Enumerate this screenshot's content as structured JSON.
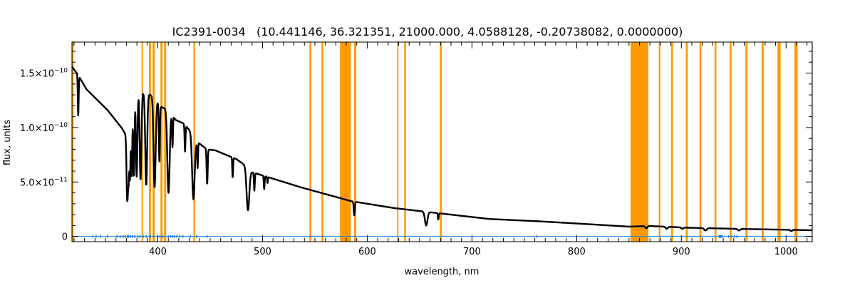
{
  "chart_data": {
    "type": "line",
    "title": "IC2391-0034   (10.441146, 36.321351, 21000.000, 4.0588128, -0.20738082, 0.0000000)",
    "xlabel": "wavelength, nm",
    "ylabel": "flux, units",
    "xlim": [
      318,
      1025
    ],
    "ylim_e11": [
      -0.48,
      17.85
    ],
    "x_ticks": [
      {
        "value": 400,
        "label": "400"
      },
      {
        "value": 500,
        "label": "500"
      },
      {
        "value": 600,
        "label": "600"
      },
      {
        "value": 700,
        "label": "700"
      },
      {
        "value": 800,
        "label": "800"
      },
      {
        "value": 900,
        "label": "900"
      },
      {
        "value": 1000,
        "label": "1000"
      }
    ],
    "y_ticks": [
      {
        "value_e11": 0,
        "mantissa": "0",
        "exponent": ""
      },
      {
        "value_e11": 5,
        "mantissa": "5.0×10",
        "exponent": "−11"
      },
      {
        "value_e11": 10,
        "mantissa": "1.0×10",
        "exponent": "−10"
      },
      {
        "value_e11": 15,
        "mantissa": "1.5×10",
        "exponent": "−10"
      }
    ],
    "colors": {
      "spectrum": "#000000",
      "masks": "#ff9900",
      "error": "#1e7fe0"
    },
    "series": [
      {
        "name": "flux",
        "unit_scale": "1e-11",
        "continuum": [
          [
            318,
            15.6
          ],
          [
            324,
            14.8
          ],
          [
            332,
            13.5
          ],
          [
            352,
            11.6
          ],
          [
            366,
            9.9
          ],
          [
            369.5,
            9.3
          ],
          [
            371,
            12.0
          ],
          [
            376,
            13.1
          ],
          [
            382,
            13.3
          ],
          [
            396,
            12.9
          ],
          [
            403,
            11.9
          ],
          [
            410,
            11.6
          ],
          [
            417,
            10.7
          ],
          [
            424,
            10.4
          ],
          [
            432,
            9.6
          ],
          [
            436,
            8.8
          ],
          [
            447,
            8.0
          ],
          [
            455,
            7.9
          ],
          [
            475,
            7.1
          ],
          [
            484,
            6.5
          ],
          [
            490,
            5.9
          ],
          [
            537,
            4.5
          ],
          [
            575,
            3.5
          ],
          [
            584,
            3.25
          ],
          [
            626,
            2.6
          ],
          [
            671,
            2.1
          ],
          [
            717,
            1.6
          ],
          [
            762,
            1.4
          ],
          [
            807,
            1.15
          ],
          [
            850,
            0.9
          ],
          [
            869,
            0.96
          ],
          [
            907,
            0.8
          ],
          [
            952,
            0.7
          ],
          [
            1025,
            0.57
          ]
        ],
        "absorption_lines": [
          [
            324,
            11.1,
            0.4
          ],
          [
            370.4,
            5.8,
            0.5
          ],
          [
            371.2,
            5.9,
            0.5
          ],
          [
            372.2,
            6.0,
            0.5
          ],
          [
            373.4,
            5.7,
            0.5
          ],
          [
            375.0,
            5.6,
            0.6
          ],
          [
            377.1,
            5.5,
            0.6
          ],
          [
            379.8,
            5.5,
            0.7
          ],
          [
            383.5,
            5.2,
            0.8
          ],
          [
            388.9,
            4.7,
            0.9
          ],
          [
            396.9,
            4.5,
            1.0
          ],
          [
            401.5,
            6.8,
            0.5
          ],
          [
            410.2,
            4.0,
            1.1
          ],
          [
            414,
            8.2,
            0.4
          ],
          [
            426,
            7.8,
            0.4
          ],
          [
            434.0,
            3.4,
            1.2
          ],
          [
            438,
            6.3,
            0.4
          ],
          [
            447.1,
            4.8,
            0.5
          ],
          [
            471.5,
            5.4,
            0.4
          ],
          [
            486.1,
            2.4,
            1.3
          ],
          [
            492.2,
            4.2,
            0.4
          ],
          [
            501.6,
            4.35,
            0.4
          ],
          [
            504.8,
            4.9,
            0.3
          ],
          [
            587.6,
            1.95,
            0.5
          ],
          [
            656.3,
            1.0,
            1.2
          ],
          [
            667.8,
            1.55,
            0.4
          ],
          [
            866.5,
            0.75,
            1.0
          ],
          [
            886,
            0.7,
            1.0
          ],
          [
            901,
            0.7,
            1.0
          ],
          [
            923,
            0.55,
            1.2
          ],
          [
            955,
            0.55,
            1.2
          ],
          [
            1005,
            0.5,
            1.0
          ]
        ]
      }
    ],
    "masked_regions_nm": [
      [
        318,
        319.5
      ],
      [
        384.5,
        385.8
      ],
      [
        391.5,
        393.5
      ],
      [
        395,
        397
      ],
      [
        402.5,
        404.5
      ],
      [
        406,
        408
      ],
      [
        434,
        435.5
      ],
      [
        544.8,
        546.6
      ],
      [
        556.3,
        558
      ],
      [
        574,
        584.3
      ],
      [
        587.5,
        589.4
      ],
      [
        628.5,
        629.8
      ],
      [
        635.3,
        637
      ],
      [
        669.4,
        671.3
      ],
      [
        851.5,
        868.5
      ],
      [
        878.4,
        879.9
      ],
      [
        890.3,
        892
      ],
      [
        904.2,
        906.1
      ],
      [
        917.3,
        919.1
      ],
      [
        931.7,
        933.5
      ],
      [
        946.1,
        947.9
      ],
      [
        961.2,
        963.1
      ],
      [
        976.6,
        978.6
      ],
      [
        991.8,
        994.8
      ],
      [
        1008,
        1011
      ],
      [
        1024.3,
        1025
      ]
    ],
    "error_markers_nm": [
      338,
      341,
      345,
      352,
      361,
      364,
      367,
      369,
      371,
      372,
      374,
      376,
      378,
      381,
      383,
      386,
      389,
      393,
      396,
      400,
      402,
      405,
      410,
      412,
      414,
      416,
      418,
      421,
      424,
      431,
      437,
      447,
      762,
      936,
      937,
      938,
      939,
      945,
      948,
      951,
      953
    ],
    "legend": "none",
    "grid": false
  }
}
